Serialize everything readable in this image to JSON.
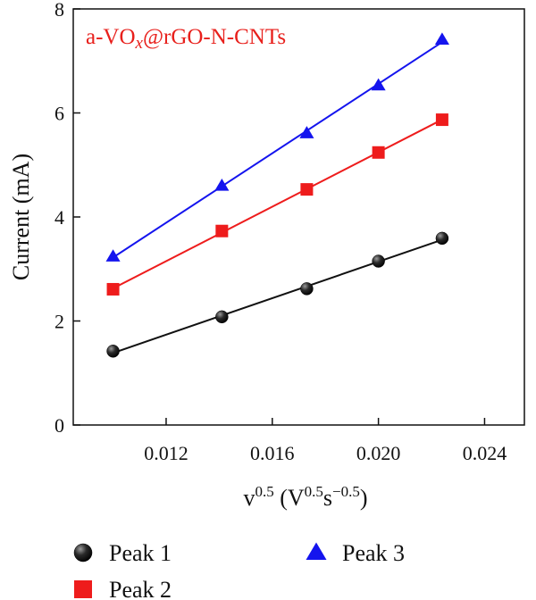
{
  "chart_data": {
    "type": "scatter",
    "annotation": {
      "prefix": "a-VO",
      "sub": "x",
      "suffix": "@rGO-N-CNTs",
      "color": "#e8201c"
    },
    "xlabel": {
      "base": "v",
      "base_sup": "0.5",
      "open": " (V",
      "unit_sup": "0.5",
      "unit": "s",
      "unit_sup2": "−0.5",
      "close": ")"
    },
    "ylabel": "Current (mA)",
    "xlim": [
      0.0085,
      0.0255
    ],
    "ylim": [
      0,
      8
    ],
    "x_ticks": [
      0.012,
      0.016,
      0.02,
      0.024
    ],
    "x_tick_labels": [
      "0.012",
      "0.016",
      "0.020",
      "0.024"
    ],
    "y_ticks": [
      0,
      2,
      4,
      6,
      8
    ],
    "y_tick_labels": [
      "0",
      "2",
      "4",
      "6",
      "8"
    ],
    "x": [
      0.01,
      0.0141,
      0.0173,
      0.02,
      0.0224
    ],
    "series": [
      {
        "name": "Peak 1",
        "marker": "sphere",
        "color": "#111111",
        "values": [
          1.42,
          2.08,
          2.62,
          3.15,
          3.59
        ]
      },
      {
        "name": "Peak 2",
        "marker": "square",
        "color": "#ee1c1c",
        "values": [
          2.61,
          3.73,
          4.53,
          5.24,
          5.87
        ]
      },
      {
        "name": "Peak 3",
        "marker": "triangle",
        "color": "#1414ee",
        "values": [
          3.24,
          4.6,
          5.61,
          6.53,
          7.41
        ]
      }
    ],
    "fit_lines": true,
    "grid": false,
    "legend_position": "bottom"
  }
}
